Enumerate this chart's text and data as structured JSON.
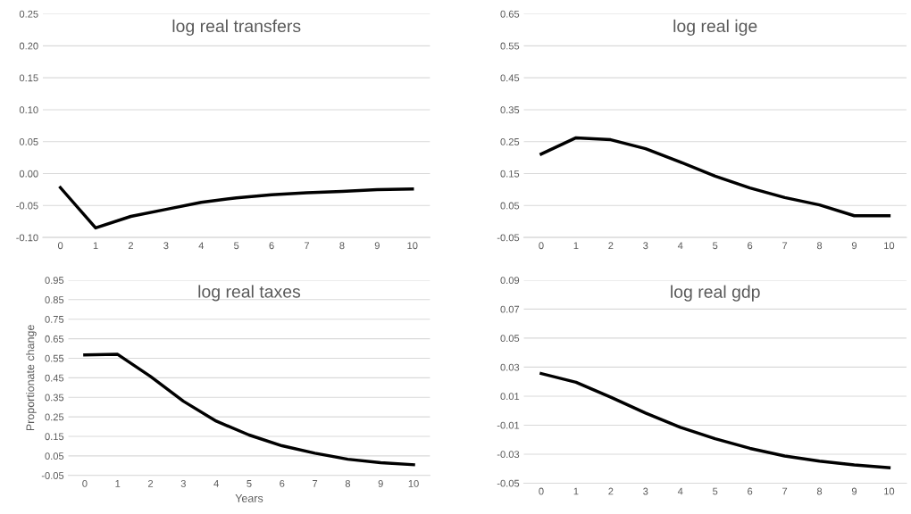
{
  "chart_data": [
    {
      "type": "line",
      "title": "log real transfers",
      "categories": [
        "0",
        "1",
        "2",
        "3",
        "4",
        "5",
        "6",
        "7",
        "8",
        "9",
        "10"
      ],
      "series": [
        {
          "color": "#000000",
          "values": [
            -0.022,
            -0.085,
            -0.067,
            -0.056,
            -0.045,
            -0.038,
            -0.033,
            -0.03,
            -0.028,
            -0.025,
            -0.024
          ]
        }
      ],
      "ylim": [
        -0.1,
        0.25
      ],
      "yticks": [
        {
          "value": -0.1,
          "label": "-0.10"
        },
        {
          "value": -0.05,
          "label": "-0.05"
        },
        {
          "value": 0,
          "label": "0.00"
        },
        {
          "value": 0.05,
          "label": "0.05"
        },
        {
          "value": 0.1,
          "label": "0.10"
        },
        {
          "value": 0.15,
          "label": "0.15"
        },
        {
          "value": 0.2,
          "label": "0.20"
        },
        {
          "value": 0.25,
          "label": "0.25"
        }
      ],
      "grid": "y",
      "legend": false,
      "marker": "none",
      "line_style": "solid"
    },
    {
      "type": "line",
      "title": "log real ige",
      "categories": [
        "0",
        "1",
        "2",
        "3",
        "4",
        "5",
        "6",
        "7",
        "8",
        "9",
        "10"
      ],
      "series": [
        {
          "color": "#000000",
          "values": [
            0.211,
            0.262,
            0.256,
            0.228,
            0.186,
            0.142,
            0.105,
            0.075,
            0.052,
            0.018,
            0.018
          ]
        }
      ],
      "ylim": [
        -0.05,
        0.65
      ],
      "yticks": [
        {
          "value": -0.05,
          "label": "-0.05"
        },
        {
          "value": 0.05,
          "label": "0.05"
        },
        {
          "value": 0.15,
          "label": "0.15"
        },
        {
          "value": 0.25,
          "label": "0.25"
        },
        {
          "value": 0.35,
          "label": "0.35"
        },
        {
          "value": 0.45,
          "label": "0.45"
        },
        {
          "value": 0.55,
          "label": "0.55"
        },
        {
          "value": 0.65,
          "label": "0.65"
        }
      ],
      "grid": "y",
      "legend": false,
      "marker": "none",
      "line_style": "solid"
    },
    {
      "type": "line",
      "title": "log real taxes",
      "xlabel": "Years",
      "ylabel": "Proportionate change",
      "categories": [
        "0",
        "1",
        "2",
        "3",
        "4",
        "5",
        "6",
        "7",
        "8",
        "9",
        "10"
      ],
      "series": [
        {
          "color": "#000000",
          "values": [
            0.567,
            0.57,
            0.457,
            0.33,
            0.228,
            0.157,
            0.102,
            0.064,
            0.033,
            0.015,
            0.005
          ]
        }
      ],
      "ylim": [
        -0.05,
        0.95
      ],
      "yticks": [
        {
          "value": -0.05,
          "label": "-0.05"
        },
        {
          "value": 0.05,
          "label": "0.05"
        },
        {
          "value": 0.15,
          "label": "0.15"
        },
        {
          "value": 0.25,
          "label": "0.25"
        },
        {
          "value": 0.35,
          "label": "0.35"
        },
        {
          "value": 0.45,
          "label": "0.45"
        },
        {
          "value": 0.55,
          "label": "0.55"
        },
        {
          "value": 0.65,
          "label": "0.65"
        },
        {
          "value": 0.75,
          "label": "0.75"
        },
        {
          "value": 0.85,
          "label": "0.85"
        },
        {
          "value": 0.95,
          "label": "0.95"
        }
      ],
      "grid": "y",
      "legend": false,
      "marker": "none",
      "line_style": "solid"
    },
    {
      "type": "line",
      "title": "log real gdp",
      "categories": [
        "0",
        "1",
        "2",
        "3",
        "4",
        "5",
        "6",
        "7",
        "8",
        "9",
        "10"
      ],
      "series": [
        {
          "color": "#000000",
          "values": [
            0.0256,
            0.0196,
            0.0093,
            -0.0017,
            -0.0115,
            -0.0193,
            -0.026,
            -0.0313,
            -0.0348,
            -0.0374,
            -0.0393
          ]
        }
      ],
      "ylim": [
        -0.05,
        0.09
      ],
      "yticks": [
        {
          "value": -0.05,
          "label": "-0.05"
        },
        {
          "value": -0.03,
          "label": "-0.03"
        },
        {
          "value": -0.01,
          "label": "-0.01"
        },
        {
          "value": 0.01,
          "label": "0.01"
        },
        {
          "value": 0.03,
          "label": "0.03"
        },
        {
          "value": 0.05,
          "label": "0.05"
        },
        {
          "value": 0.07,
          "label": "0.07"
        },
        {
          "value": 0.09,
          "label": "0.09"
        }
      ],
      "grid": "y",
      "legend": false,
      "marker": "none",
      "line_style": "solid"
    }
  ]
}
